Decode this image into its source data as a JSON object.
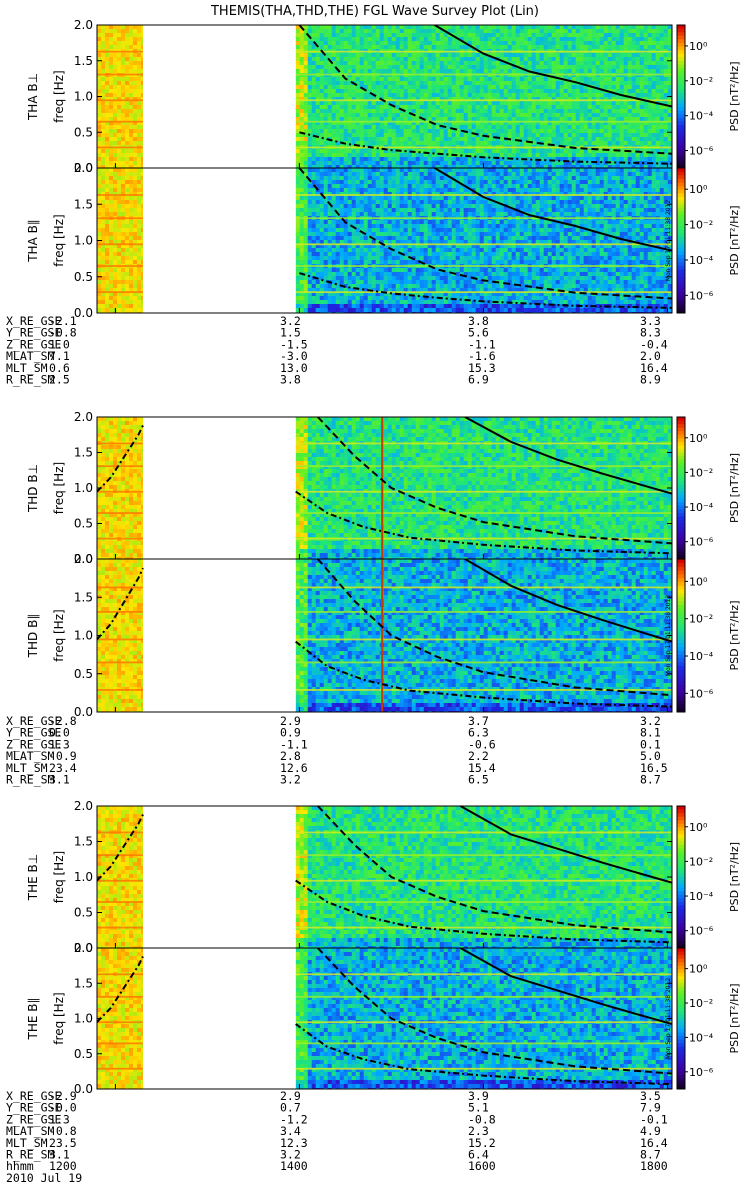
{
  "chart_data": {
    "type": "heatmap",
    "title": "THEMIS(THA,THD,THE) FGL Wave Survey Plot (Lin)",
    "date": "2010 Jul 19",
    "colorbar": {
      "label": "PSD [nT²/Hz]",
      "ticks": [
        "10⁰",
        "10⁻²",
        "10⁻⁴",
        "10⁻⁶"
      ],
      "tick_exponents": [
        0,
        -2,
        -4,
        -6
      ],
      "range_exponent": [
        -7,
        1.2
      ]
    },
    "timestamp": "Mon Sep 17 01:11:38 2012",
    "x_axis": {
      "row_label": "hhmm",
      "time_ticks": [
        "1200",
        "1400",
        "1600",
        "1800"
      ],
      "time_range_hours": [
        11.8,
        18.05
      ]
    },
    "panels": [
      {
        "probe": "THA",
        "component": "B⊥",
        "name": "THA B⊥",
        "ylabel": "freq [Hz]",
        "yticks": [
          "0.0",
          "0.5",
          "1.0",
          "1.5",
          "2.0"
        ],
        "ylim": [
          0,
          2
        ],
        "data_gap_hours": [
          12.3,
          13.96
        ],
        "marker_line_hour": null,
        "curves": [
          {
            "style": "solid",
            "points": [
              [
                15.47,
                2.0
              ],
              [
                16.0,
                1.6
              ],
              [
                16.5,
                1.35
              ],
              [
                17.0,
                1.2
              ],
              [
                17.5,
                1.02
              ],
              [
                18.05,
                0.86
              ]
            ]
          },
          {
            "style": "dashed",
            "points": [
              [
                14.0,
                2.0
              ],
              [
                14.5,
                1.25
              ],
              [
                15.0,
                0.88
              ],
              [
                15.5,
                0.6
              ],
              [
                16.0,
                0.45
              ],
              [
                17.0,
                0.28
              ],
              [
                18.05,
                0.2
              ]
            ]
          },
          {
            "style": "dashdot",
            "points": [
              [
                14.0,
                0.5
              ],
              [
                14.5,
                0.34
              ],
              [
                15.0,
                0.25
              ],
              [
                15.5,
                0.2
              ],
              [
                16.0,
                0.15
              ],
              [
                17.0,
                0.09
              ],
              [
                18.05,
                0.06
              ]
            ]
          }
        ]
      },
      {
        "probe": "THA",
        "component": "B∥",
        "name": "THA B∥",
        "ylabel": "freq [Hz]",
        "yticks": [
          "0.0",
          "0.5",
          "1.0",
          "1.5",
          "2.0"
        ],
        "ylim": [
          0,
          2
        ],
        "data_gap_hours": [
          12.3,
          13.96
        ],
        "marker_line_hour": null,
        "curves": [
          {
            "style": "solid",
            "points": [
              [
                15.47,
                2.0
              ],
              [
                16.0,
                1.6
              ],
              [
                16.5,
                1.35
              ],
              [
                17.0,
                1.2
              ],
              [
                17.5,
                1.02
              ],
              [
                18.05,
                0.86
              ]
            ]
          },
          {
            "style": "dashed",
            "points": [
              [
                14.0,
                2.0
              ],
              [
                14.5,
                1.25
              ],
              [
                15.0,
                0.88
              ],
              [
                15.5,
                0.6
              ],
              [
                16.0,
                0.45
              ],
              [
                17.0,
                0.28
              ],
              [
                18.05,
                0.2
              ]
            ]
          },
          {
            "style": "dashdot",
            "points": [
              [
                14.0,
                0.55
              ],
              [
                14.5,
                0.36
              ],
              [
                15.0,
                0.27
              ],
              [
                15.5,
                0.21
              ],
              [
                16.0,
                0.16
              ],
              [
                17.0,
                0.1
              ],
              [
                18.05,
                0.07
              ]
            ]
          }
        ]
      },
      {
        "probe": "THD",
        "component": "B⊥",
        "name": "THD B⊥",
        "ylabel": "freq [Hz]",
        "yticks": [
          "0.0",
          "0.5",
          "1.0",
          "1.5",
          "2.0"
        ],
        "ylim": [
          0,
          2
        ],
        "data_gap_hours": [
          12.3,
          13.96
        ],
        "marker_line_hour": 14.9,
        "curves": [
          {
            "style": "solid",
            "points": [
              [
                15.8,
                2.0
              ],
              [
                16.3,
                1.65
              ],
              [
                16.8,
                1.4
              ],
              [
                17.3,
                1.2
              ],
              [
                17.7,
                1.05
              ],
              [
                18.05,
                0.92
              ]
            ]
          },
          {
            "style": "dashed",
            "points": [
              [
                14.2,
                2.0
              ],
              [
                14.6,
                1.45
              ],
              [
                15.0,
                1.0
              ],
              [
                15.5,
                0.72
              ],
              [
                16.0,
                0.52
              ],
              [
                17.0,
                0.32
              ],
              [
                18.05,
                0.22
              ]
            ]
          },
          {
            "style": "dashdot",
            "points": [
              [
                13.96,
                0.95
              ],
              [
                14.3,
                0.65
              ],
              [
                14.7,
                0.45
              ],
              [
                15.2,
                0.3
              ],
              [
                16.0,
                0.2
              ],
              [
                17.0,
                0.12
              ],
              [
                18.05,
                0.08
              ]
            ]
          },
          {
            "style": "dashdot",
            "points": [
              [
                11.8,
                0.95
              ],
              [
                11.95,
                1.15
              ],
              [
                12.1,
                1.45
              ],
              [
                12.25,
                1.75
              ],
              [
                12.3,
                1.88
              ]
            ]
          }
        ]
      },
      {
        "probe": "THD",
        "component": "B∥",
        "name": "THD B∥",
        "ylabel": "freq [Hz]",
        "yticks": [
          "0.0",
          "0.5",
          "1.0",
          "1.5",
          "2.0"
        ],
        "ylim": [
          0,
          2
        ],
        "data_gap_hours": [
          12.3,
          13.96
        ],
        "marker_line_hour": 14.9,
        "curves": [
          {
            "style": "solid",
            "points": [
              [
                15.8,
                2.0
              ],
              [
                16.3,
                1.65
              ],
              [
                16.8,
                1.4
              ],
              [
                17.3,
                1.2
              ],
              [
                17.7,
                1.05
              ],
              [
                18.05,
                0.92
              ]
            ]
          },
          {
            "style": "dashed",
            "points": [
              [
                14.2,
                2.0
              ],
              [
                14.6,
                1.45
              ],
              [
                15.0,
                1.0
              ],
              [
                15.5,
                0.72
              ],
              [
                16.0,
                0.52
              ],
              [
                17.0,
                0.32
              ],
              [
                18.05,
                0.22
              ]
            ]
          },
          {
            "style": "dashdot",
            "points": [
              [
                13.96,
                0.92
              ],
              [
                14.3,
                0.6
              ],
              [
                14.7,
                0.42
              ],
              [
                15.2,
                0.28
              ],
              [
                16.0,
                0.19
              ],
              [
                17.0,
                0.11
              ],
              [
                18.05,
                0.07
              ]
            ]
          },
          {
            "style": "dashdot",
            "points": [
              [
                11.8,
                0.95
              ],
              [
                11.95,
                1.15
              ],
              [
                12.1,
                1.45
              ],
              [
                12.25,
                1.75
              ],
              [
                12.3,
                1.88
              ]
            ]
          }
        ]
      },
      {
        "probe": "THE",
        "component": "B⊥",
        "name": "THE B⊥",
        "ylabel": "freq [Hz]",
        "yticks": [
          "0.0",
          "0.5",
          "1.0",
          "1.5",
          "2.0"
        ],
        "ylim": [
          0,
          2
        ],
        "data_gap_hours": [
          12.3,
          13.96
        ],
        "marker_line_hour": null,
        "curves": [
          {
            "style": "solid",
            "points": [
              [
                15.75,
                2.0
              ],
              [
                16.3,
                1.6
              ],
              [
                16.8,
                1.4
              ],
              [
                17.3,
                1.2
              ],
              [
                17.7,
                1.05
              ],
              [
                18.05,
                0.92
              ]
            ]
          },
          {
            "style": "dashed",
            "points": [
              [
                14.2,
                2.0
              ],
              [
                14.6,
                1.45
              ],
              [
                15.0,
                1.0
              ],
              [
                15.5,
                0.72
              ],
              [
                16.0,
                0.52
              ],
              [
                17.0,
                0.32
              ],
              [
                18.05,
                0.22
              ]
            ]
          },
          {
            "style": "dashdot",
            "points": [
              [
                13.96,
                0.95
              ],
              [
                14.3,
                0.65
              ],
              [
                14.7,
                0.45
              ],
              [
                15.2,
                0.3
              ],
              [
                16.0,
                0.2
              ],
              [
                17.0,
                0.12
              ],
              [
                18.05,
                0.08
              ]
            ]
          },
          {
            "style": "dashdot",
            "points": [
              [
                11.8,
                0.95
              ],
              [
                11.95,
                1.15
              ],
              [
                12.1,
                1.45
              ],
              [
                12.25,
                1.75
              ],
              [
                12.3,
                1.88
              ]
            ]
          }
        ]
      },
      {
        "probe": "THE",
        "component": "B∥",
        "name": "THE B∥",
        "ylabel": "freq [Hz]",
        "yticks": [
          "0.0",
          "0.5",
          "1.0",
          "1.5",
          "2.0"
        ],
        "ylim": [
          0,
          2
        ],
        "data_gap_hours": [
          12.3,
          13.96
        ],
        "marker_line_hour": null,
        "curves": [
          {
            "style": "solid",
            "points": [
              [
                15.75,
                2.0
              ],
              [
                16.3,
                1.6
              ],
              [
                16.8,
                1.4
              ],
              [
                17.3,
                1.2
              ],
              [
                17.7,
                1.05
              ],
              [
                18.05,
                0.92
              ]
            ]
          },
          {
            "style": "dashed",
            "points": [
              [
                14.2,
                2.0
              ],
              [
                14.6,
                1.45
              ],
              [
                15.0,
                1.0
              ],
              [
                15.5,
                0.72
              ],
              [
                16.0,
                0.52
              ],
              [
                17.0,
                0.32
              ],
              [
                18.05,
                0.22
              ]
            ]
          },
          {
            "style": "dashdot",
            "points": [
              [
                13.96,
                0.92
              ],
              [
                14.3,
                0.6
              ],
              [
                14.7,
                0.42
              ],
              [
                15.2,
                0.28
              ],
              [
                16.0,
                0.19
              ],
              [
                17.0,
                0.11
              ],
              [
                18.05,
                0.07
              ]
            ]
          },
          {
            "style": "dashdot",
            "points": [
              [
                11.8,
                0.95
              ],
              [
                11.95,
                1.15
              ],
              [
                12.1,
                1.45
              ],
              [
                12.25,
                1.75
              ],
              [
                12.3,
                1.88
              ]
            ]
          }
        ]
      }
    ],
    "ephemeris_tables": [
      {
        "probe": "THA",
        "rows": [
          {
            "label": "X_RE_GSE",
            "values": [
              "-2.1",
              "3.2",
              "3.8",
              "3.3"
            ]
          },
          {
            "label": "Y_RE_GSE",
            "values": [
              "-0.8",
              "1.5",
              "5.6",
              "8.3"
            ]
          },
          {
            "label": "Z_RE_GSE",
            "values": [
              "1.0",
              "-1.5",
              "-1.1",
              "-0.4"
            ]
          },
          {
            "label": "MLAT_SM",
            "values": [
              "7.1",
              "-3.0",
              "-1.6",
              "2.0"
            ]
          },
          {
            "label": "MLT_SM",
            "values": [
              "0.6",
              "13.0",
              "15.3",
              "16.4"
            ]
          },
          {
            "label": "R_RE_SM",
            "values": [
              "2.5",
              "3.8",
              "6.9",
              "8.9"
            ]
          }
        ]
      },
      {
        "probe": "THD",
        "rows": [
          {
            "label": "X_RE_GSE",
            "values": [
              "-2.8",
              "2.9",
              "3.7",
              "3.2"
            ]
          },
          {
            "label": "Y_RE_GSE",
            "values": [
              "0.0",
              "0.9",
              "6.3",
              "8.1"
            ]
          },
          {
            "label": "Z_RE_GSE",
            "values": [
              "1.3",
              "-1.1",
              "-0.6",
              "0.1"
            ]
          },
          {
            "label": "MLAT_SM",
            "values": [
              "-0.9",
              "2.8",
              "2.2",
              "5.0"
            ]
          },
          {
            "label": "MLT_SM",
            "values": [
              "23.4",
              "12.6",
              "15.4",
              "16.5"
            ]
          },
          {
            "label": "R_RE_SM",
            "values": [
              "3.1",
              "3.2",
              "6.5",
              "8.7"
            ]
          }
        ]
      },
      {
        "probe": "THE",
        "rows": [
          {
            "label": "X_RE_GSE",
            "values": [
              "-2.9",
              "2.9",
              "3.9",
              "3.5"
            ]
          },
          {
            "label": "Y_RE_GSE",
            "values": [
              "-0.0",
              "0.7",
              "5.1",
              "7.9"
            ]
          },
          {
            "label": "Z_RE_GSE",
            "values": [
              "1.3",
              "-1.2",
              "-0.8",
              "-0.1"
            ]
          },
          {
            "label": "MLAT_SM",
            "values": [
              "-0.8",
              "3.4",
              "2.3",
              "4.9"
            ]
          },
          {
            "label": "MLT_SM",
            "values": [
              "23.5",
              "12.3",
              "15.2",
              "16.4"
            ]
          },
          {
            "label": "R_RE_SM",
            "values": [
              "3.1",
              "3.2",
              "6.4",
              "8.7"
            ]
          }
        ]
      }
    ]
  }
}
